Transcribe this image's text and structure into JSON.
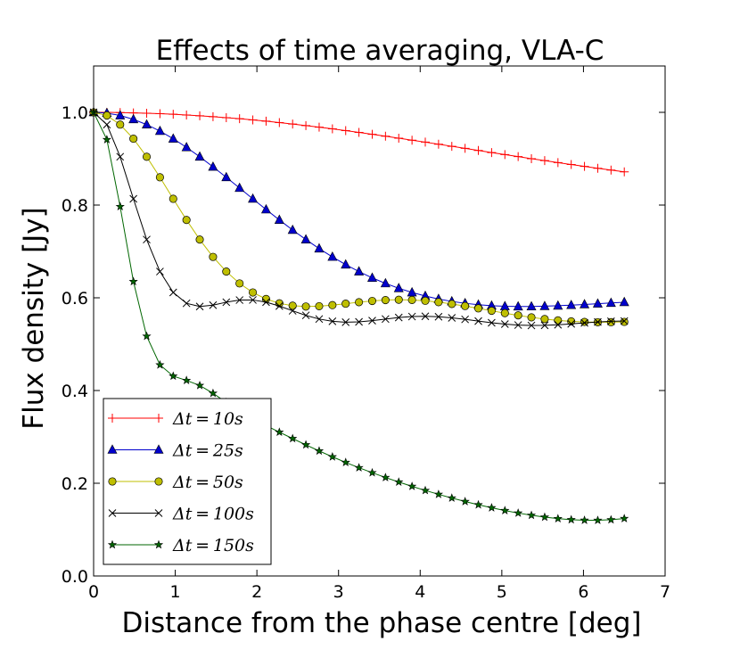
{
  "chart_data": {
    "type": "line",
    "title": "Effects of time averaging, VLA-C",
    "xlabel": "Distance from the phase centre [deg]",
    "ylabel": "Flux density [Jy]",
    "xlim": [
      0,
      7
    ],
    "ylim": [
      0,
      1.1
    ],
    "xticks": [
      0,
      1,
      2,
      3,
      4,
      5,
      6,
      7
    ],
    "xtick_labels": [
      "0",
      "1",
      "2",
      "3",
      "4",
      "5",
      "6",
      "7"
    ],
    "yticks": [
      0.0,
      0.2,
      0.4,
      0.6,
      0.8,
      1.0
    ],
    "ytick_labels": [
      "0.0",
      "0.2",
      "0.4",
      "0.6",
      "0.8",
      "1.0"
    ],
    "grid": false,
    "legend_position": "lower-left",
    "x_start": 0,
    "x_step": 0.1625,
    "series": [
      {
        "name": "Δt = 10s",
        "legend_label": "Δt = 10s",
        "color": "#ff0000",
        "marker": "plus",
        "values": [
          1.0,
          0.9999,
          0.9995,
          0.9989,
          0.9981,
          0.9971,
          0.9958,
          0.9943,
          0.9926,
          0.9906,
          0.9885,
          0.9862,
          0.9836,
          0.9809,
          0.9779,
          0.9748,
          0.9715,
          0.968,
          0.9644,
          0.9606,
          0.9567,
          0.9527,
          0.9486,
          0.9443,
          0.94,
          0.9357,
          0.9312,
          0.9268,
          0.9223,
          0.9178,
          0.9133,
          0.9089,
          0.9045,
          0.9001,
          0.8958,
          0.8916,
          0.8874,
          0.8833,
          0.8793,
          0.8754,
          0.8716
        ]
      },
      {
        "name": "Δt = 25s",
        "legend_label": "Δt = 25s",
        "color": "#0000cc",
        "marker": "triangle",
        "values": [
          1.0,
          0.9983,
          0.9932,
          0.9849,
          0.9736,
          0.9596,
          0.9431,
          0.9245,
          0.9042,
          0.8825,
          0.8599,
          0.8368,
          0.8135,
          0.7904,
          0.7679,
          0.7462,
          0.7256,
          0.7062,
          0.6882,
          0.6716,
          0.6566,
          0.643,
          0.631,
          0.6206,
          0.6115,
          0.6038,
          0.5974,
          0.5922,
          0.5881,
          0.5851,
          0.583,
          0.5817,
          0.5812,
          0.5813,
          0.5819,
          0.5829,
          0.5842,
          0.5857,
          0.5873,
          0.5889,
          0.5905
        ]
      },
      {
        "name": "Δt = 50s",
        "legend_label": "Δt = 50s",
        "color": "#bfbf00",
        "marker": "circle",
        "values": [
          1.0,
          0.9932,
          0.9736,
          0.9431,
          0.9042,
          0.8599,
          0.8135,
          0.7679,
          0.7256,
          0.6882,
          0.6566,
          0.631,
          0.6115,
          0.5974,
          0.5881,
          0.583,
          0.5812,
          0.5819,
          0.5842,
          0.5873,
          0.5905,
          0.5932,
          0.5951,
          0.5958,
          0.5953,
          0.5935,
          0.5906,
          0.5867,
          0.5822,
          0.5772,
          0.572,
          0.5669,
          0.5621,
          0.5578,
          0.5542,
          0.5513,
          0.5492,
          0.5479,
          0.5473,
          0.5474,
          0.5481
        ]
      },
      {
        "name": "Δt = 100s",
        "legend_label": "Δt = 100s",
        "color": "#000000",
        "marker": "x",
        "values": [
          1.0,
          0.9736,
          0.9042,
          0.8135,
          0.7256,
          0.6566,
          0.6115,
          0.5881,
          0.5812,
          0.5842,
          0.5905,
          0.5951,
          0.5953,
          0.5906,
          0.5822,
          0.572,
          0.5621,
          0.5542,
          0.5492,
          0.5473,
          0.5481,
          0.5508,
          0.5542,
          0.5574,
          0.5595,
          0.5601,
          0.5592,
          0.5568,
          0.5535,
          0.5497,
          0.5461,
          0.5432,
          0.5412,
          0.5403,
          0.5406,
          0.5418,
          0.5437,
          0.5459,
          0.5478,
          0.5492,
          0.5499
        ]
      },
      {
        "name": "Δt = 150s",
        "legend_label": "Δt = 150s",
        "color": "#006600",
        "marker": "star",
        "values": [
          1.0,
          0.9412,
          0.7968,
          0.6351,
          0.5172,
          0.4553,
          0.4311,
          0.4218,
          0.4109,
          0.3941,
          0.3745,
          0.3557,
          0.3391,
          0.3243,
          0.3102,
          0.2964,
          0.2829,
          0.2697,
          0.257,
          0.2449,
          0.2335,
          0.2227,
          0.2124,
          0.2026,
          0.1933,
          0.1845,
          0.1761,
          0.1681,
          0.1606,
          0.1536,
          0.1471,
          0.1411,
          0.1357,
          0.1309,
          0.1269,
          0.1237,
          0.1214,
          0.1202,
          0.1201,
          0.1213,
          0.1239
        ]
      }
    ]
  }
}
